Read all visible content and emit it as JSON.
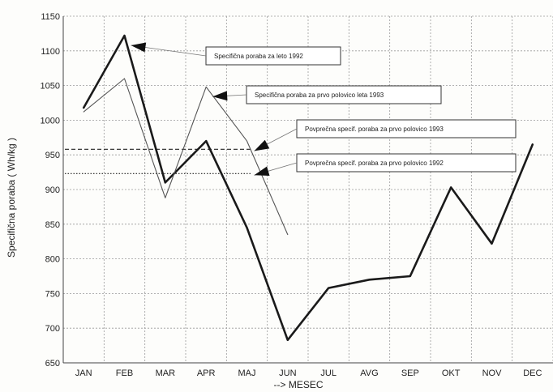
{
  "chart_data": {
    "type": "line",
    "title": "",
    "xlabel": "--> MESEC",
    "ylabel": "Specifična poraba ( Wh/kg )",
    "categories": [
      "JAN",
      "FEB",
      "MAR",
      "APR",
      "MAJ",
      "JUN",
      "JUL",
      "AVG",
      "SEP",
      "OKT",
      "NOV",
      "DEC"
    ],
    "ylim": [
      650,
      1150
    ],
    "yticks": [
      650,
      700,
      750,
      800,
      850,
      900,
      950,
      1000,
      1050,
      1100,
      1150
    ],
    "grid": true,
    "series": [
      {
        "name": "Specifična poraba za leto 1992",
        "style": "thick",
        "color": "#1a1a1a",
        "values": [
          1018,
          1122,
          910,
          970,
          845,
          683,
          758,
          770,
          775,
          903,
          822,
          965
        ]
      },
      {
        "name": "Specifična poraba za prvo polovico leta 1993",
        "style": "thin",
        "color": "#555555",
        "values": [
          1012,
          1060,
          888,
          1048,
          970,
          835,
          null,
          null,
          null,
          null,
          null,
          null
        ]
      }
    ],
    "reference_lines": [
      {
        "name": "Povprečna specif. poraba za prvo polovico 1993",
        "style": "dashed",
        "value": 958,
        "x_start": "JAN",
        "x_end": "MAJ"
      },
      {
        "name": "Povprečna specif. poraba za prvo polovico 1992",
        "style": "dotted",
        "value": 923,
        "x_start": "JAN",
        "x_end": "MAJ"
      }
    ],
    "annotations": [
      {
        "text": "Specifična poraba za leto 1992",
        "target_series": 0,
        "target_index": 1
      },
      {
        "text": "Specifična poraba za prvo polovico leta 1993",
        "target_series": 1,
        "target_index": 3
      },
      {
        "text": "Povprečna specif. poraba za prvo polovico 1993",
        "target_ref": 0
      },
      {
        "text": "Povprečna specif. poraba za prvo polovico 1992",
        "target_ref": 1
      }
    ]
  }
}
